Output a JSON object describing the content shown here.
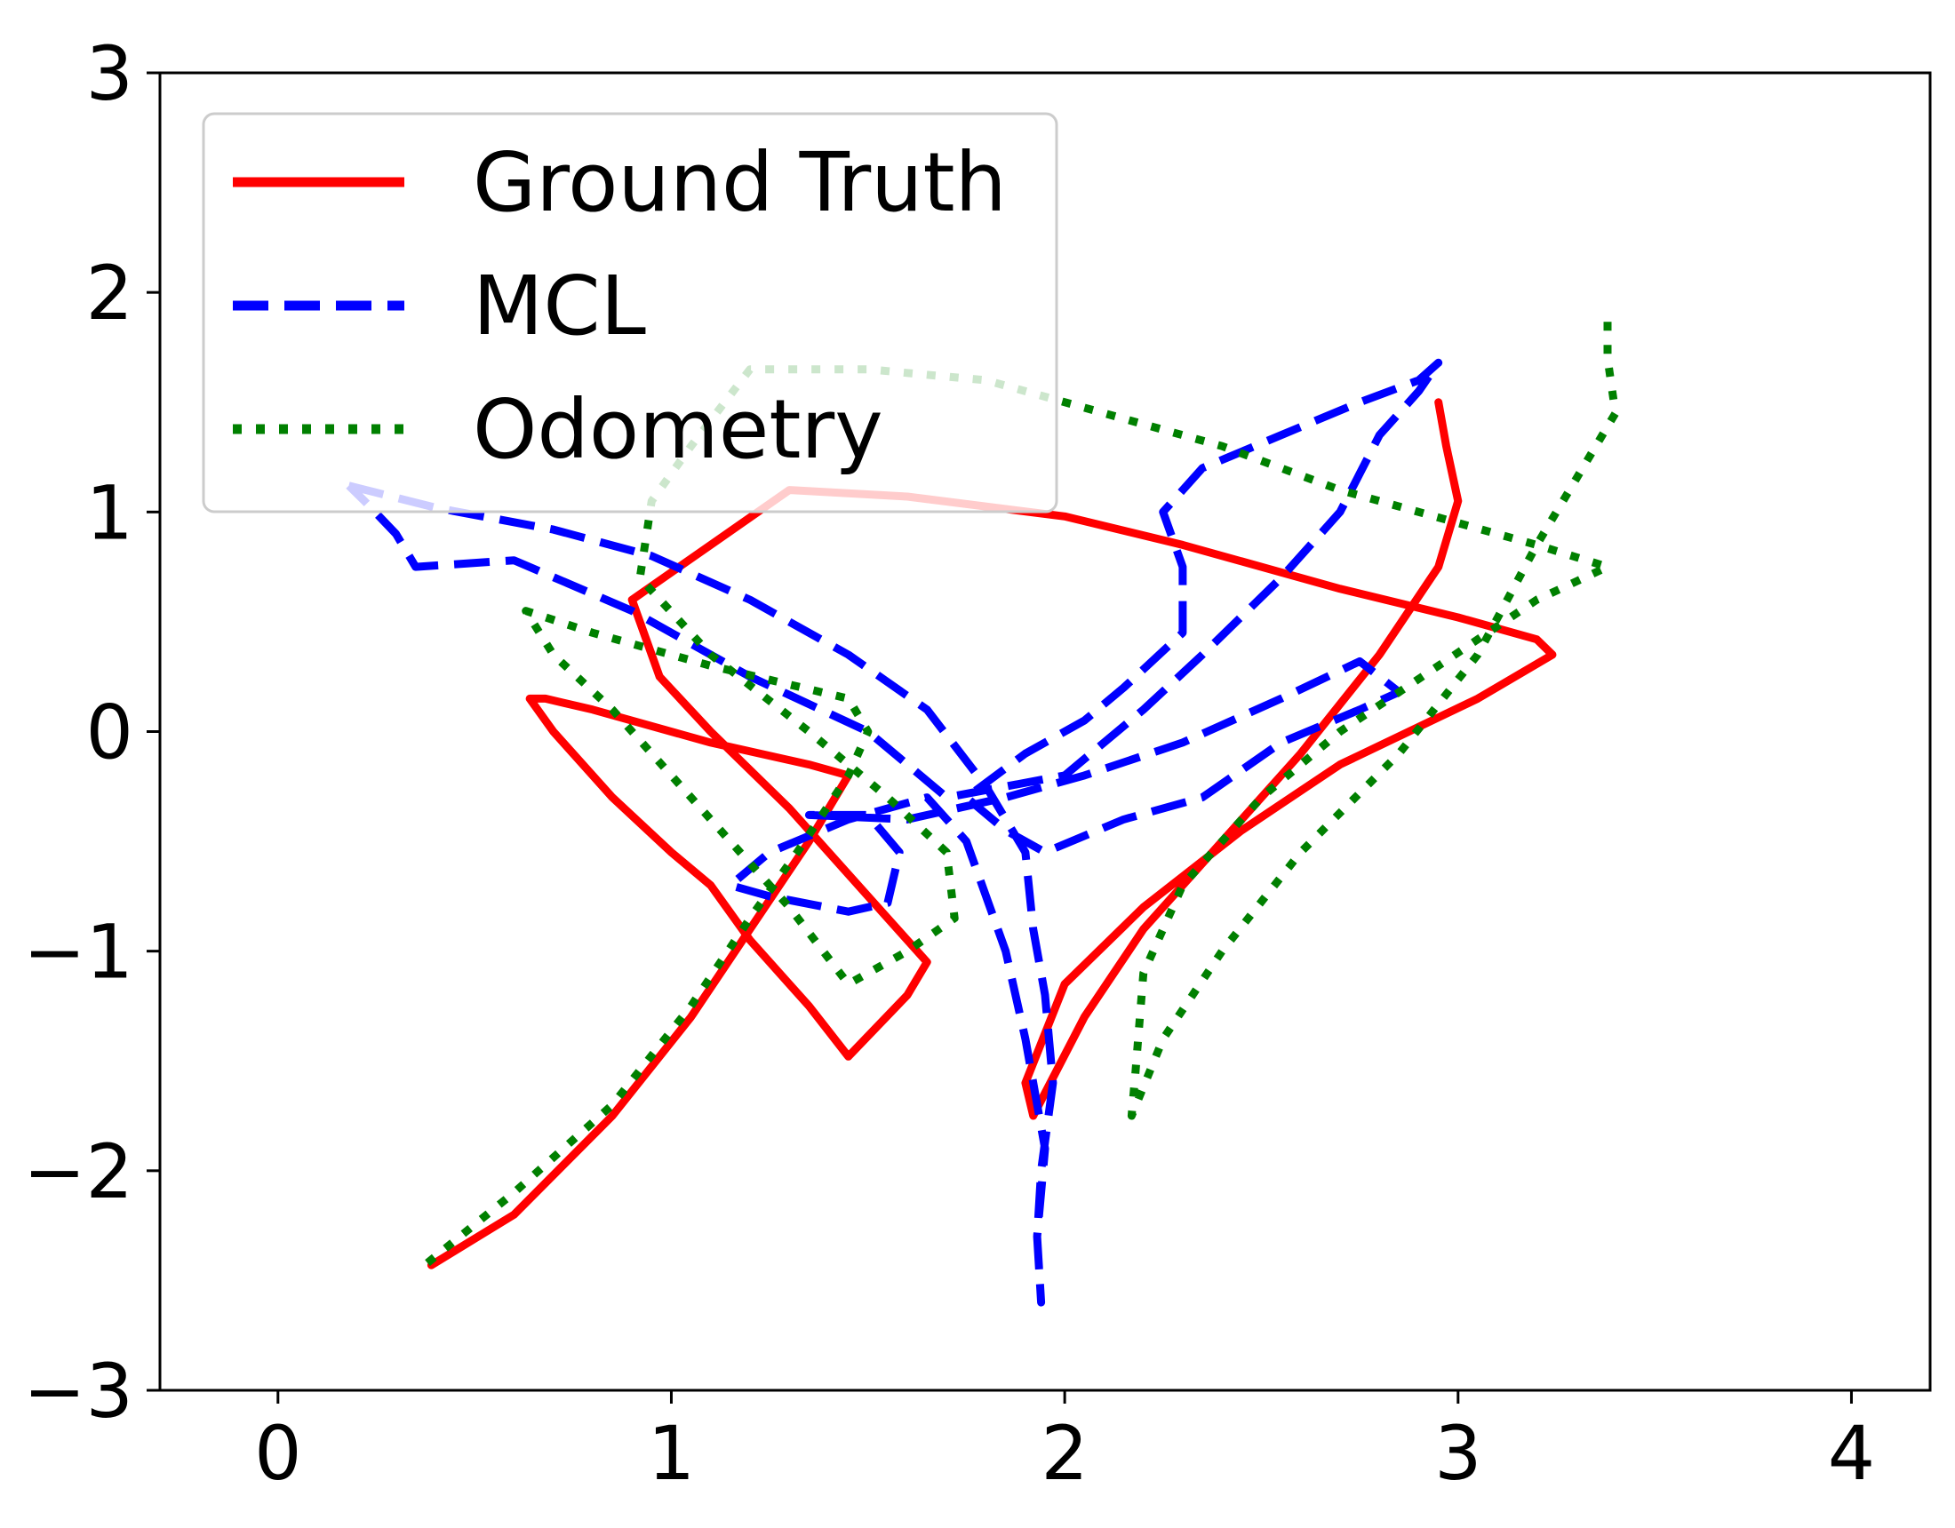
{
  "chart_data": {
    "type": "line",
    "title": "",
    "xlabel": "",
    "ylabel": "",
    "xlim": [
      -0.3,
      4.2
    ],
    "ylim": [
      -3,
      3
    ],
    "xticks": [
      0,
      1,
      2,
      3,
      4
    ],
    "yticks": [
      -3,
      -2,
      -1,
      0,
      1,
      2,
      3
    ],
    "xtick_labels": [
      "0",
      "1",
      "2",
      "3",
      "4"
    ],
    "ytick_labels": [
      "−3",
      "−2",
      "−1",
      "0",
      "1",
      "2",
      "3"
    ],
    "grid": false,
    "legend_position": "top-left",
    "series": [
      {
        "name": "Ground Truth",
        "color": "#ff0000",
        "style": "solid",
        "points": [
          [
            0.39,
            -2.43
          ],
          [
            0.6,
            -2.2
          ],
          [
            0.85,
            -1.75
          ],
          [
            1.05,
            -1.3
          ],
          [
            1.2,
            -0.9
          ],
          [
            1.35,
            -0.5
          ],
          [
            1.45,
            -0.2
          ],
          [
            1.35,
            -0.15
          ],
          [
            1.1,
            -0.05
          ],
          [
            0.8,
            0.1
          ],
          [
            0.68,
            0.15
          ],
          [
            0.64,
            0.15
          ],
          [
            0.7,
            0.0
          ],
          [
            0.85,
            -0.3
          ],
          [
            1.0,
            -0.55
          ],
          [
            1.1,
            -0.7
          ],
          [
            1.2,
            -0.95
          ],
          [
            1.35,
            -1.25
          ],
          [
            1.45,
            -1.48
          ],
          [
            1.6,
            -1.2
          ],
          [
            1.65,
            -1.05
          ],
          [
            1.5,
            -0.75
          ],
          [
            1.3,
            -0.35
          ],
          [
            1.1,
            0.0
          ],
          [
            0.97,
            0.25
          ],
          [
            0.9,
            0.6
          ],
          [
            1.1,
            0.85
          ],
          [
            1.3,
            1.1
          ],
          [
            1.6,
            1.07
          ],
          [
            2.0,
            0.98
          ],
          [
            2.3,
            0.85
          ],
          [
            2.7,
            0.65
          ],
          [
            3.0,
            0.52
          ],
          [
            3.2,
            0.42
          ],
          [
            3.24,
            0.35
          ],
          [
            3.05,
            0.15
          ],
          [
            2.7,
            -0.15
          ],
          [
            2.45,
            -0.45
          ],
          [
            2.2,
            -0.8
          ],
          [
            2.0,
            -1.15
          ],
          [
            1.9,
            -1.6
          ],
          [
            1.92,
            -1.75
          ],
          [
            2.05,
            -1.3
          ],
          [
            2.2,
            -0.9
          ],
          [
            2.4,
            -0.5
          ],
          [
            2.6,
            -0.1
          ],
          [
            2.8,
            0.35
          ],
          [
            2.95,
            0.75
          ],
          [
            3.0,
            1.05
          ],
          [
            2.97,
            1.3
          ],
          [
            2.95,
            1.5
          ]
        ]
      },
      {
        "name": "MCL",
        "color": "#0000ff",
        "style": "dashed",
        "points": [
          [
            0.18,
            1.12
          ],
          [
            0.4,
            1.02
          ],
          [
            0.7,
            0.92
          ],
          [
            0.95,
            0.8
          ],
          [
            1.2,
            0.6
          ],
          [
            1.45,
            0.35
          ],
          [
            1.65,
            0.1
          ],
          [
            1.8,
            -0.25
          ],
          [
            1.9,
            -0.55
          ],
          [
            1.92,
            -0.9
          ],
          [
            1.95,
            -1.2
          ],
          [
            1.97,
            -1.6
          ],
          [
            1.94,
            -2.0
          ],
          [
            1.93,
            -2.3
          ],
          [
            1.94,
            -2.6
          ],
          [
            1.93,
            -2.3
          ],
          [
            1.95,
            -1.9
          ],
          [
            1.9,
            -1.4
          ],
          [
            1.85,
            -1.0
          ],
          [
            1.8,
            -0.75
          ],
          [
            1.75,
            -0.5
          ],
          [
            1.65,
            -0.3
          ],
          [
            1.45,
            -0.4
          ],
          [
            1.25,
            -0.55
          ],
          [
            1.15,
            -0.7
          ],
          [
            1.25,
            -0.75
          ],
          [
            1.45,
            -0.82
          ],
          [
            1.55,
            -0.78
          ],
          [
            1.58,
            -0.55
          ],
          [
            1.5,
            -0.38
          ],
          [
            1.35,
            -0.38
          ],
          [
            1.6,
            -0.4
          ],
          [
            1.85,
            -0.3
          ],
          [
            2.05,
            -0.2
          ],
          [
            2.3,
            -0.05
          ],
          [
            2.55,
            0.15
          ],
          [
            2.75,
            0.32
          ],
          [
            2.85,
            0.18
          ],
          [
            2.75,
            0.1
          ],
          [
            2.55,
            -0.05
          ],
          [
            2.35,
            -0.3
          ],
          [
            2.15,
            -0.4
          ],
          [
            1.95,
            -0.55
          ],
          [
            1.85,
            -0.45
          ],
          [
            1.75,
            -0.3
          ],
          [
            1.9,
            -0.1
          ],
          [
            2.05,
            0.05
          ],
          [
            2.15,
            0.2
          ],
          [
            2.3,
            0.45
          ],
          [
            2.3,
            0.75
          ],
          [
            2.25,
            1.0
          ],
          [
            2.35,
            1.2
          ],
          [
            2.55,
            1.35
          ],
          [
            2.75,
            1.5
          ],
          [
            2.9,
            1.6
          ],
          [
            2.95,
            1.68
          ],
          [
            2.9,
            1.55
          ],
          [
            2.8,
            1.35
          ],
          [
            2.7,
            1.0
          ],
          [
            2.55,
            0.7
          ],
          [
            2.35,
            0.35
          ],
          [
            2.2,
            0.1
          ],
          [
            2.0,
            -0.2
          ],
          [
            1.7,
            -0.3
          ],
          [
            1.5,
            0.0
          ],
          [
            1.2,
            0.25
          ],
          [
            0.9,
            0.55
          ],
          [
            0.6,
            0.78
          ],
          [
            0.35,
            0.75
          ],
          [
            0.3,
            0.9
          ],
          [
            0.22,
            1.05
          ],
          [
            0.18,
            1.12
          ]
        ]
      },
      {
        "name": "Odometry",
        "color": "#008000",
        "style": "dotted",
        "points": [
          [
            0.38,
            -2.42
          ],
          [
            0.6,
            -2.1
          ],
          [
            0.85,
            -1.7
          ],
          [
            1.05,
            -1.25
          ],
          [
            1.2,
            -0.85
          ],
          [
            1.32,
            -0.55
          ],
          [
            1.45,
            -0.2
          ],
          [
            1.5,
            0.0
          ],
          [
            1.45,
            0.15
          ],
          [
            1.1,
            0.3
          ],
          [
            0.8,
            0.45
          ],
          [
            0.63,
            0.55
          ],
          [
            0.7,
            0.35
          ],
          [
            0.85,
            0.1
          ],
          [
            1.0,
            -0.2
          ],
          [
            1.15,
            -0.5
          ],
          [
            1.3,
            -0.8
          ],
          [
            1.45,
            -1.15
          ],
          [
            1.6,
            -1.0
          ],
          [
            1.72,
            -0.85
          ],
          [
            1.7,
            -0.55
          ],
          [
            1.55,
            -0.3
          ],
          [
            1.35,
            0.0
          ],
          [
            1.1,
            0.35
          ],
          [
            0.92,
            0.7
          ],
          [
            0.95,
            1.05
          ],
          [
            1.05,
            1.3
          ],
          [
            1.2,
            1.65
          ],
          [
            1.5,
            1.65
          ],
          [
            1.8,
            1.6
          ],
          [
            2.1,
            1.45
          ],
          [
            2.4,
            1.3
          ],
          [
            2.7,
            1.1
          ],
          [
            3.0,
            0.95
          ],
          [
            3.2,
            0.85
          ],
          [
            3.38,
            0.75
          ],
          [
            3.2,
            0.6
          ],
          [
            2.95,
            0.3
          ],
          [
            2.7,
            0.0
          ],
          [
            2.5,
            -0.3
          ],
          [
            2.3,
            -0.7
          ],
          [
            2.2,
            -1.1
          ],
          [
            2.18,
            -1.55
          ],
          [
            2.17,
            -1.75
          ],
          [
            2.25,
            -1.4
          ],
          [
            2.4,
            -1.0
          ],
          [
            2.6,
            -0.55
          ],
          [
            2.85,
            -0.1
          ],
          [
            3.05,
            0.35
          ],
          [
            3.2,
            0.85
          ],
          [
            3.4,
            1.45
          ],
          [
            3.38,
            1.7
          ],
          [
            3.38,
            1.92
          ]
        ]
      }
    ]
  }
}
